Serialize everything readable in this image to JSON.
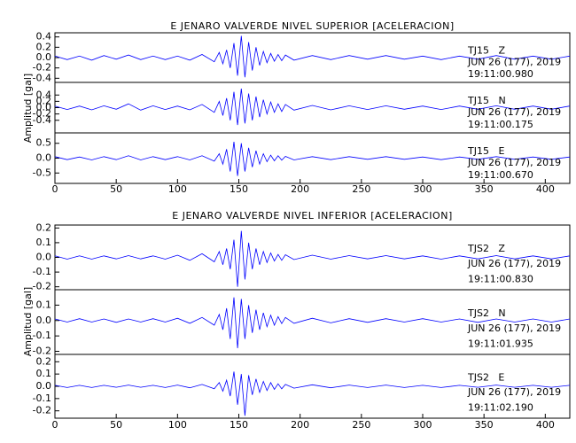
{
  "chart_data": [
    {
      "type": "line",
      "title": "E JENARO VALVERDE NIVEL SUPERIOR [ACELERACION]",
      "ylabel": "Amplitud [gal]",
      "xlim": [
        0,
        420
      ],
      "xticks": [
        0,
        50,
        100,
        150,
        200,
        250,
        300,
        350,
        400
      ],
      "x": [
        0,
        10,
        20,
        30,
        40,
        50,
        60,
        70,
        80,
        90,
        100,
        110,
        120,
        130,
        134,
        137,
        140,
        143,
        146,
        149,
        152,
        155,
        158,
        161,
        164,
        167,
        170,
        173,
        176,
        179,
        182,
        185,
        188,
        195,
        210,
        225,
        240,
        255,
        270,
        285,
        300,
        315,
        330,
        345,
        360,
        375,
        390,
        405,
        420
      ],
      "panels": [
        {
          "station": "TJ15   Z",
          "date": "JUN 26 (177), 2019",
          "time": "19:11:00.980",
          "color": "#0000ff",
          "ylim": [
            -0.48,
            0.48
          ],
          "yticks": [
            -0.4,
            -0.2,
            {
              "value": 0,
              "label": "0.0"
            },
            0.2,
            0.4
          ],
          "values": [
            0.03,
            -0.04,
            0.03,
            -0.05,
            0.04,
            -0.03,
            0.05,
            -0.04,
            0.03,
            -0.04,
            0.03,
            -0.05,
            0.06,
            -0.08,
            0.1,
            -0.12,
            0.15,
            -0.2,
            0.28,
            -0.35,
            0.42,
            -0.38,
            0.3,
            -0.25,
            0.2,
            -0.15,
            0.12,
            -0.1,
            0.08,
            -0.07,
            0.06,
            -0.06,
            0.05,
            -0.05,
            0.04,
            -0.04,
            0.04,
            -0.03,
            0.04,
            -0.03,
            0.03,
            -0.04,
            0.03,
            -0.03,
            0.04,
            -0.03,
            0.03,
            -0.03,
            0.03
          ]
        },
        {
          "station": "TJ15   N",
          "date": "JUN 26 (177), 2019",
          "time": "19:11:00.175",
          "color": "#0000ff",
          "ylim": [
            -0.8,
            0.8
          ],
          "yticks": [
            -0.4,
            -0.2,
            {
              "value": 0,
              "label": "0.0"
            },
            0.2,
            0.4
          ],
          "values": [
            0.05,
            -0.06,
            0.05,
            -0.07,
            0.06,
            -0.05,
            0.12,
            -0.08,
            0.06,
            -0.06,
            0.05,
            -0.07,
            0.1,
            -0.15,
            0.2,
            -0.25,
            0.3,
            -0.4,
            0.5,
            -0.55,
            0.6,
            -0.5,
            0.45,
            -0.4,
            0.35,
            -0.3,
            0.25,
            -0.2,
            0.18,
            -0.15,
            0.12,
            -0.12,
            0.1,
            -0.08,
            0.07,
            -0.07,
            0.06,
            -0.06,
            0.06,
            -0.05,
            0.05,
            -0.06,
            0.05,
            -0.05,
            0.06,
            -0.05,
            0.05,
            -0.05,
            0.05
          ]
        },
        {
          "station": "TJ15   E",
          "date": "JUN 26 (177), 2019",
          "time": "19:11:00.670",
          "color": "#0000ff",
          "ylim": [
            -0.85,
            0.85
          ],
          "yticks": [
            -0.5,
            {
              "value": 0,
              "label": "0.0"
            },
            0.5
          ],
          "values": [
            0.05,
            -0.05,
            0.04,
            -0.06,
            0.05,
            -0.05,
            0.08,
            -0.06,
            0.05,
            -0.05,
            0.05,
            -0.06,
            0.08,
            -0.1,
            0.15,
            -0.2,
            0.3,
            -0.45,
            0.55,
            -0.6,
            0.5,
            -0.45,
            0.35,
            -0.3,
            0.25,
            -0.2,
            0.15,
            -0.12,
            0.1,
            -0.09,
            0.08,
            -0.07,
            0.06,
            -0.06,
            0.05,
            -0.05,
            0.05,
            -0.04,
            0.05,
            -0.04,
            0.04,
            -0.05,
            0.04,
            -0.04,
            0.05,
            -0.04,
            0.04,
            -0.04,
            0.04
          ]
        }
      ]
    },
    {
      "type": "line",
      "title": "E JENARO VALVERDE NIVEL INFERIOR [ACELERACION]",
      "ylabel": "Amplitud [gal]",
      "xlim": [
        0,
        420
      ],
      "xticks": [
        0,
        50,
        100,
        150,
        200,
        250,
        300,
        350,
        400
      ],
      "x": [
        0,
        10,
        20,
        30,
        40,
        50,
        60,
        70,
        80,
        90,
        100,
        110,
        120,
        130,
        134,
        137,
        140,
        143,
        146,
        149,
        152,
        155,
        158,
        161,
        164,
        167,
        170,
        173,
        176,
        179,
        182,
        185,
        188,
        195,
        210,
        225,
        240,
        255,
        270,
        285,
        300,
        315,
        330,
        345,
        360,
        375,
        390,
        405,
        420
      ],
      "panels": [
        {
          "station": "TJS2   Z",
          "date": "JUN 26 (177), 2019",
          "time": "19:11:00.830",
          "color": "#0000ff",
          "ylim": [
            -0.22,
            0.22
          ],
          "yticks": [
            -0.2,
            -0.1,
            {
              "value": 0,
              "label": "0.0"
            },
            0.1,
            0.2
          ],
          "values": [
            0.01,
            -0.012,
            0.01,
            -0.012,
            0.01,
            -0.01,
            0.012,
            -0.01,
            0.01,
            -0.012,
            0.015,
            -0.02,
            0.025,
            -0.03,
            0.04,
            -0.05,
            0.06,
            -0.08,
            0.12,
            -0.2,
            0.18,
            -0.15,
            0.1,
            -0.08,
            0.06,
            -0.05,
            0.04,
            -0.035,
            0.03,
            -0.025,
            0.02,
            -0.02,
            0.018,
            -0.015,
            0.015,
            -0.012,
            0.012,
            -0.01,
            0.012,
            -0.01,
            0.01,
            -0.012,
            0.01,
            -0.01,
            0.012,
            -0.01,
            0.01,
            -0.01,
            0.01
          ]
        },
        {
          "station": "TJS2   N",
          "date": "JUN 26 (177), 2019",
          "time": "19:11:01.935",
          "color": "#0000ff",
          "ylim": [
            -0.22,
            0.2
          ],
          "yticks": [
            -0.2,
            -0.1,
            {
              "value": 0,
              "label": "0.0"
            },
            0.1
          ],
          "values": [
            0.01,
            -0.01,
            0.012,
            -0.01,
            0.01,
            -0.012,
            0.01,
            -0.01,
            0.012,
            -0.01,
            0.015,
            -0.018,
            0.02,
            -0.03,
            0.04,
            -0.06,
            0.08,
            -0.12,
            0.15,
            -0.18,
            0.14,
            -0.12,
            0.1,
            -0.08,
            0.07,
            -0.06,
            0.05,
            -0.04,
            0.035,
            -0.03,
            0.025,
            -0.02,
            0.02,
            -0.018,
            0.015,
            -0.015,
            0.012,
            -0.012,
            0.012,
            -0.01,
            0.012,
            -0.01,
            0.01,
            -0.012,
            0.01,
            -0.01,
            0.01,
            -0.01,
            0.01
          ]
        },
        {
          "station": "TJS2   E",
          "date": "JUN 26 (177), 2019",
          "time": "19:11:02.190",
          "color": "#0000ff",
          "ylim": [
            -0.26,
            0.26
          ],
          "yticks": [
            -0.2,
            -0.1,
            {
              "value": 0,
              "label": "0.0"
            },
            0.1,
            0.2
          ],
          "values": [
            0.008,
            -0.01,
            0.008,
            -0.01,
            0.008,
            -0.008,
            0.01,
            -0.008,
            0.008,
            -0.01,
            0.01,
            -0.012,
            0.015,
            -0.02,
            0.03,
            -0.04,
            0.05,
            -0.08,
            0.12,
            -0.15,
            0.1,
            -0.24,
            0.09,
            -0.07,
            0.06,
            -0.05,
            0.04,
            -0.035,
            0.03,
            -0.025,
            0.02,
            -0.02,
            0.015,
            -0.015,
            0.012,
            -0.012,
            0.01,
            -0.01,
            0.01,
            -0.01,
            0.008,
            -0.01,
            0.008,
            -0.008,
            0.01,
            -0.008,
            0.008,
            -0.008,
            0.008
          ]
        }
      ]
    }
  ]
}
